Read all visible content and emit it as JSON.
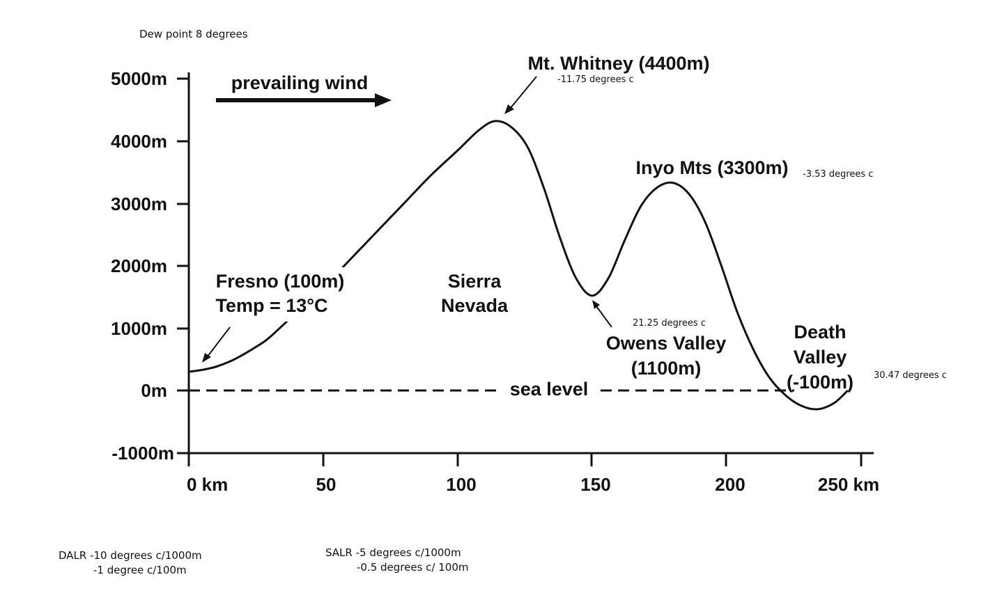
{
  "notes": {
    "dew_point": "Dew point 8 degrees",
    "dalr_line1": "DALR -10 degrees c/1000m",
    "dalr_line2": "-1 degree c/100m",
    "salr_line1": "SALR -5 degrees c/1000m",
    "salr_line2": "-0.5 degrees c/ 100m"
  },
  "wind_label": "prevailing wind",
  "y_ticks": [
    "5000m",
    "4000m",
    "3000m",
    "2000m",
    "1000m",
    "0m",
    "-1000m"
  ],
  "x_ticks": [
    "0 km",
    "50",
    "100",
    "150",
    "200",
    "250 km"
  ],
  "sea_level": "sea level",
  "labels": {
    "whitney": "Mt. Whitney (4400m)",
    "whitney_temp": "-11.75 degrees c",
    "inyo": "Inyo Mts (3300m)",
    "inyo_temp": "-3.53 degrees c",
    "fresno_1": "Fresno (100m)",
    "fresno_2": "Temp = 13°C",
    "sierra_1": "Sierra",
    "sierra_2": "Nevada",
    "owens_temp": "21.25 degrees c",
    "owens_1": "Owens Valley",
    "owens_2": "(1100m)",
    "death_1": "Death",
    "death_2": "Valley",
    "death_3": "(-100m)",
    "death_temp": "30.47 degrees c"
  },
  "profile": [
    [
      0,
      300
    ],
    [
      5,
      330
    ],
    [
      10,
      380
    ],
    [
      15,
      460
    ],
    [
      20,
      570
    ],
    [
      25,
      700
    ],
    [
      30,
      850
    ],
    [
      40,
      1250
    ],
    [
      50,
      1650
    ],
    [
      60,
      2100
    ],
    [
      70,
      2550
    ],
    [
      80,
      3000
    ],
    [
      90,
      3450
    ],
    [
      100,
      3850
    ],
    [
      108,
      4180
    ],
    [
      114,
      4320
    ],
    [
      120,
      4220
    ],
    [
      126,
      3900
    ],
    [
      132,
      3250
    ],
    [
      138,
      2450
    ],
    [
      144,
      1800
    ],
    [
      150,
      1520
    ],
    [
      156,
      1800
    ],
    [
      162,
      2400
    ],
    [
      168,
      2950
    ],
    [
      174,
      3250
    ],
    [
      180,
      3330
    ],
    [
      186,
      3150
    ],
    [
      192,
      2700
    ],
    [
      198,
      2000
    ],
    [
      204,
      1250
    ],
    [
      210,
      650
    ],
    [
      216,
      200
    ],
    [
      222,
      -80
    ],
    [
      228,
      -250
    ],
    [
      234,
      -300
    ],
    [
      240,
      -200
    ],
    [
      245,
      0
    ]
  ],
  "colors": {
    "ink": "#111111",
    "background": "#ffffff"
  }
}
